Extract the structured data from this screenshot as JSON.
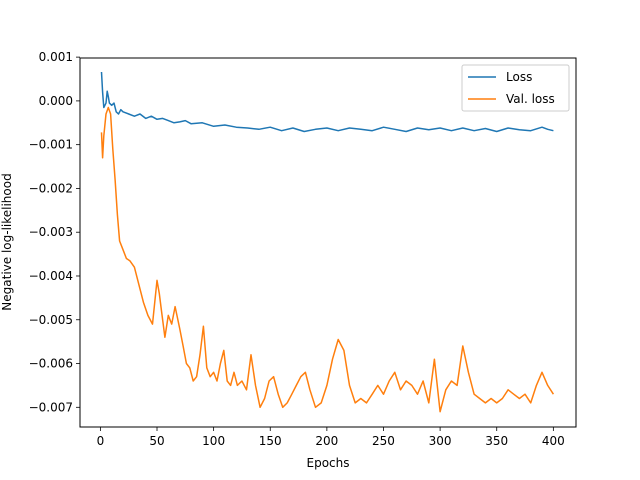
{
  "chart_data": {
    "type": "line",
    "title": "",
    "xlabel": "Epochs",
    "ylabel": "Negative log-likelihood",
    "xlim": [
      -18,
      420
    ],
    "ylim": [
      -0.00745,
      0.00098
    ],
    "xticks": [
      0,
      50,
      100,
      150,
      200,
      250,
      300,
      350,
      400
    ],
    "xtick_labels": [
      "0",
      "50",
      "100",
      "150",
      "200",
      "250",
      "300",
      "350",
      "400"
    ],
    "yticks": [
      0.001,
      0.0,
      -0.001,
      -0.002,
      -0.003,
      -0.004,
      -0.005,
      -0.006,
      -0.007
    ],
    "ytick_labels": [
      "0.001",
      "0.000",
      "−0.001",
      "−0.002",
      "−0.003",
      "−0.004",
      "−0.005",
      "−0.006",
      "−0.007"
    ],
    "legend_position": "top-right",
    "grid": false,
    "series": [
      {
        "name": "Loss",
        "color": "#1f77b4",
        "x": [
          1,
          2,
          3,
          4,
          5,
          6,
          7,
          8,
          10,
          12,
          14,
          16,
          18,
          20,
          25,
          30,
          35,
          40,
          45,
          50,
          55,
          60,
          65,
          70,
          75,
          80,
          90,
          100,
          110,
          120,
          130,
          140,
          150,
          160,
          170,
          180,
          190,
          200,
          210,
          220,
          230,
          240,
          250,
          260,
          270,
          280,
          290,
          300,
          310,
          320,
          330,
          340,
          350,
          360,
          370,
          380,
          390,
          395,
          400
        ],
        "y": [
          0.00066,
          0.0002,
          -0.00015,
          -0.0001,
          -5e-05,
          0.00022,
          0.0001,
          -5e-05,
          -0.0001,
          -5e-05,
          -0.00025,
          -0.0003,
          -0.0002,
          -0.00025,
          -0.0003,
          -0.00035,
          -0.0003,
          -0.0004,
          -0.00035,
          -0.00042,
          -0.0004,
          -0.00045,
          -0.0005,
          -0.00048,
          -0.00045,
          -0.00052,
          -0.0005,
          -0.00058,
          -0.00055,
          -0.0006,
          -0.00062,
          -0.00065,
          -0.0006,
          -0.00068,
          -0.00062,
          -0.0007,
          -0.00065,
          -0.00062,
          -0.00068,
          -0.00062,
          -0.00065,
          -0.00068,
          -0.0006,
          -0.00065,
          -0.0007,
          -0.00062,
          -0.00066,
          -0.00062,
          -0.00068,
          -0.00062,
          -0.00068,
          -0.00063,
          -0.0007,
          -0.00062,
          -0.00066,
          -0.00068,
          -0.0006,
          -0.00065,
          -0.00068
        ]
      },
      {
        "name": "Val. loss",
        "color": "#ff7f0e",
        "x": [
          1,
          2,
          3,
          5,
          7,
          9,
          11,
          13,
          15,
          17,
          20,
          23,
          26,
          30,
          34,
          38,
          42,
          46,
          50,
          52,
          54,
          57,
          60,
          63,
          66,
          70,
          73,
          76,
          79,
          82,
          85,
          88,
          91,
          94,
          97,
          100,
          103,
          106,
          109,
          112,
          115,
          118,
          121,
          125,
          129,
          133,
          137,
          141,
          145,
          149,
          153,
          157,
          161,
          165,
          169,
          173,
          177,
          181,
          185,
          190,
          195,
          200,
          205,
          210,
          215,
          220,
          225,
          230,
          235,
          240,
          245,
          250,
          255,
          260,
          265,
          270,
          275,
          280,
          285,
          290,
          295,
          300,
          305,
          310,
          315,
          320,
          325,
          330,
          335,
          340,
          345,
          350,
          355,
          360,
          365,
          370,
          375,
          380,
          385,
          390,
          395,
          400
        ],
        "y": [
          -0.00072,
          -0.0013,
          -0.0008,
          -0.0003,
          -0.00015,
          -0.0003,
          -0.0011,
          -0.0018,
          -0.0026,
          -0.0032,
          -0.0034,
          -0.0036,
          -0.00365,
          -0.0038,
          -0.0042,
          -0.0046,
          -0.0049,
          -0.0051,
          -0.0041,
          -0.0044,
          -0.0048,
          -0.0054,
          -0.0049,
          -0.0051,
          -0.0047,
          -0.0052,
          -0.0056,
          -0.006,
          -0.0061,
          -0.0064,
          -0.0063,
          -0.0058,
          -0.00515,
          -0.0061,
          -0.0063,
          -0.0062,
          -0.0064,
          -0.006,
          -0.0057,
          -0.0064,
          -0.0065,
          -0.0062,
          -0.0065,
          -0.0064,
          -0.0066,
          -0.0058,
          -0.0065,
          -0.007,
          -0.0068,
          -0.0064,
          -0.0063,
          -0.0067,
          -0.007,
          -0.0069,
          -0.0067,
          -0.0065,
          -0.0063,
          -0.0062,
          -0.0066,
          -0.007,
          -0.0069,
          -0.0065,
          -0.0059,
          -0.00545,
          -0.0057,
          -0.0065,
          -0.0069,
          -0.0068,
          -0.0069,
          -0.0067,
          -0.0065,
          -0.0067,
          -0.0064,
          -0.0062,
          -0.0066,
          -0.0064,
          -0.0065,
          -0.0067,
          -0.0064,
          -0.0069,
          -0.0059,
          -0.0071,
          -0.0066,
          -0.0064,
          -0.0065,
          -0.0056,
          -0.0062,
          -0.0067,
          -0.0068,
          -0.0069,
          -0.0068,
          -0.0069,
          -0.0068,
          -0.0066,
          -0.0067,
          -0.0068,
          -0.0067,
          -0.0069,
          -0.0065,
          -0.0062,
          -0.0065,
          -0.0067
        ]
      }
    ]
  }
}
